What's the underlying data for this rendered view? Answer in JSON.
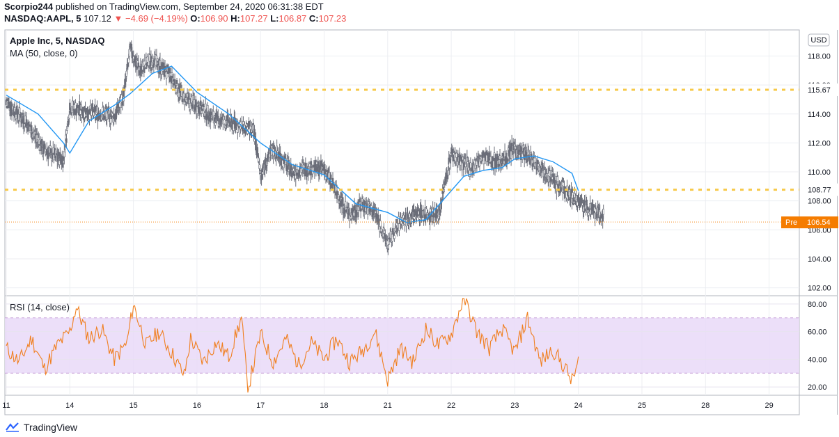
{
  "header": {
    "publisher": "Scorpio244",
    "published_text": "published on TradingView.com, September 24, 2020 06:31:38 EDT",
    "symbol": "NASDAQ:AAPL, 5",
    "last": "107.12",
    "change": "−4.69 (−4.19%)",
    "open_label": "O:",
    "open": "106.90",
    "high_label": "H:",
    "high": "107.27",
    "low_label": "L:",
    "low": "106.87",
    "close_label": "C:",
    "close": "107.23"
  },
  "footer": {
    "brand": "TradingView"
  },
  "colors": {
    "candle_up": "#787b86",
    "ma_line": "#2196f3",
    "level_line": "#f7c948",
    "pre_badge": "#f57c00",
    "rsi_line": "#f07f1f",
    "rsi_band": "#e9d9f8"
  },
  "chart_data": [
    {
      "type": "line",
      "title": "Apple Inc, 5, NASDAQ",
      "indicator": "MA (50, close, 0)",
      "currency": "USD",
      "ylim": [
        101.5,
        119.8
      ],
      "y_ticks": [
        "102.00",
        "104.00",
        "106.00",
        "108.00",
        "110.00",
        "112.00",
        "114.00",
        "116.00",
        "118.00"
      ],
      "x_ticks": [
        "11",
        "14",
        "15",
        "16",
        "17",
        "18",
        "21",
        "22",
        "23",
        "24",
        "25",
        "28",
        "29"
      ],
      "series": [
        {
          "name": "",
          "note": "approx. price path (5-min candles)",
          "x": [
            0,
            0.3,
            0.6,
            0.9,
            1.0,
            1.2,
            1.5,
            1.7,
            1.85,
            1.95,
            2.1,
            2.3,
            2.6,
            2.8,
            3.0,
            3.3,
            3.6,
            3.9,
            4.0,
            4.2,
            4.5,
            4.8,
            5.0,
            5.2,
            5.4,
            5.6,
            5.8,
            6.0,
            6.2,
            6.5,
            6.8,
            7.0,
            7.3,
            7.5,
            7.8,
            8.0,
            8.2,
            8.5,
            8.7,
            9.0,
            9.2,
            9.4
          ],
          "values": [
            114.8,
            113.5,
            111.5,
            110.8,
            114.5,
            114.2,
            114.0,
            113.8,
            115.3,
            118.5,
            117.0,
            117.8,
            116.5,
            115.0,
            114.6,
            113.6,
            113.3,
            112.7,
            109.8,
            111.6,
            110.0,
            110.3,
            110.2,
            108.5,
            107.0,
            107.8,
            107.2,
            105.0,
            106.6,
            107.2,
            107.0,
            111.3,
            110.2,
            111.0,
            110.7,
            111.7,
            111.1,
            110.0,
            109.0,
            108.0,
            107.3,
            106.9
          ]
        },
        {
          "name": "MA (50, close, 0)",
          "x": [
            0,
            0.5,
            0.9,
            1.0,
            1.3,
            1.7,
            1.95,
            2.3,
            2.6,
            3.0,
            3.5,
            4.0,
            4.5,
            5.0,
            5.5,
            6.0,
            6.3,
            6.6,
            6.9,
            7.2,
            7.5,
            7.8,
            8.0,
            8.3,
            8.6,
            8.9,
            9.0
          ],
          "values": [
            115.3,
            114.0,
            112.0,
            111.3,
            113.5,
            114.6,
            115.4,
            116.8,
            117.3,
            115.5,
            114.0,
            112.0,
            110.5,
            109.8,
            107.8,
            107.2,
            106.5,
            106.7,
            108.2,
            109.7,
            110.1,
            110.3,
            110.9,
            111.1,
            110.7,
            109.9,
            108.7
          ]
        }
      ],
      "levels": [
        {
          "value": 115.67,
          "label": "115.67"
        },
        {
          "value": 108.77,
          "label": "108.77"
        }
      ],
      "premarket": {
        "label": "Pre",
        "value": 106.54,
        "text": "106.54"
      },
      "grid": true
    },
    {
      "type": "line",
      "title": "RSI (14, close)",
      "ylim": [
        14,
        85
      ],
      "y_ticks": [
        "20.00",
        "40.00",
        "60.00",
        "80.00"
      ],
      "band": [
        30,
        70
      ],
      "series": [
        {
          "name": "RSI (14, close)",
          "x": [
            0,
            0.2,
            0.4,
            0.6,
            0.8,
            1.0,
            1.1,
            1.3,
            1.5,
            1.7,
            1.9,
            2.0,
            2.2,
            2.4,
            2.6,
            2.8,
            2.9,
            3.1,
            3.3,
            3.5,
            3.7,
            3.8,
            4.0,
            4.2,
            4.4,
            4.6,
            4.8,
            5.0,
            5.2,
            5.4,
            5.6,
            5.8,
            6.0,
            6.2,
            6.4,
            6.6,
            6.8,
            7.0,
            7.2,
            7.4,
            7.6,
            7.8,
            8.0,
            8.2,
            8.4,
            8.6,
            8.8,
            8.9,
            9.0
          ],
          "values": [
            48,
            38,
            55,
            33,
            50,
            60,
            78,
            55,
            62,
            40,
            52,
            80,
            50,
            60,
            45,
            28,
            55,
            38,
            52,
            42,
            70,
            18,
            58,
            38,
            55,
            36,
            52,
            40,
            55,
            38,
            46,
            60,
            25,
            48,
            38,
            62,
            50,
            58,
            85,
            60,
            48,
            62,
            45,
            70,
            38,
            47,
            33,
            24,
            38
          ]
        }
      ]
    }
  ]
}
